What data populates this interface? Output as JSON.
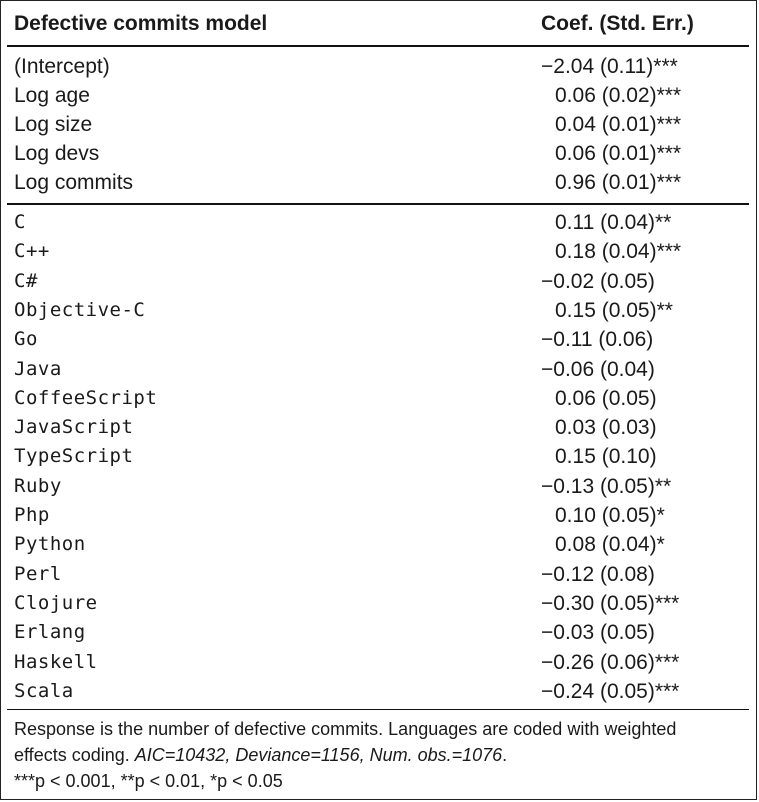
{
  "header": {
    "left": "Defective commits model",
    "right": "Coef. (Std. Err.)"
  },
  "rows_a": [
    {
      "name": "(Intercept)",
      "coef": "−2.04 (0.11)***"
    },
    {
      "name": "Log age",
      "coef": "0.06 (0.02)***"
    },
    {
      "name": "Log size",
      "coef": "0.04 (0.01)***"
    },
    {
      "name": "Log devs",
      "coef": "0.06 (0.01)***"
    },
    {
      "name": "Log commits",
      "coef": "0.96 (0.01)***"
    }
  ],
  "rows_b": [
    {
      "name": "C",
      "coef": "0.11 (0.04)**"
    },
    {
      "name": "C++",
      "coef": "0.18 (0.04)***"
    },
    {
      "name": "C#",
      "coef": "−0.02 (0.05)"
    },
    {
      "name": "Objective-C",
      "coef": "0.15 (0.05)**"
    },
    {
      "name": "Go",
      "coef": "−0.11 (0.06)"
    },
    {
      "name": "Java",
      "coef": "−0.06 (0.04)"
    },
    {
      "name": "CoffeeScript",
      "coef": "0.06 (0.05)"
    },
    {
      "name": "JavaScript",
      "coef": "0.03 (0.03)"
    },
    {
      "name": "TypeScript",
      "coef": "0.15 (0.10)"
    },
    {
      "name": "Ruby",
      "coef": "−0.13 (0.05)**"
    },
    {
      "name": "Php",
      "coef": "0.10 (0.05)*"
    },
    {
      "name": "Python",
      "coef": "0.08 (0.04)*"
    },
    {
      "name": "Perl",
      "coef": "−0.12 (0.08)"
    },
    {
      "name": "Clojure",
      "coef": "−0.30 (0.05)***"
    },
    {
      "name": "Erlang",
      "coef": "−0.03 (0.05)"
    },
    {
      "name": "Haskell",
      "coef": "−0.26 (0.06)***"
    },
    {
      "name": "Scala",
      "coef": "−0.24 (0.05)***"
    }
  ],
  "footer": {
    "line1": "Response is the number of defective commits. Languages are coded with weighted",
    "line2_plain": "effects coding. ",
    "line2_italic": "AIC=10432, Deviance=1156, Num. obs.=1076",
    "line2_end": ".",
    "line3": "***p < 0.001, **p < 0.01, *p < 0.05"
  }
}
